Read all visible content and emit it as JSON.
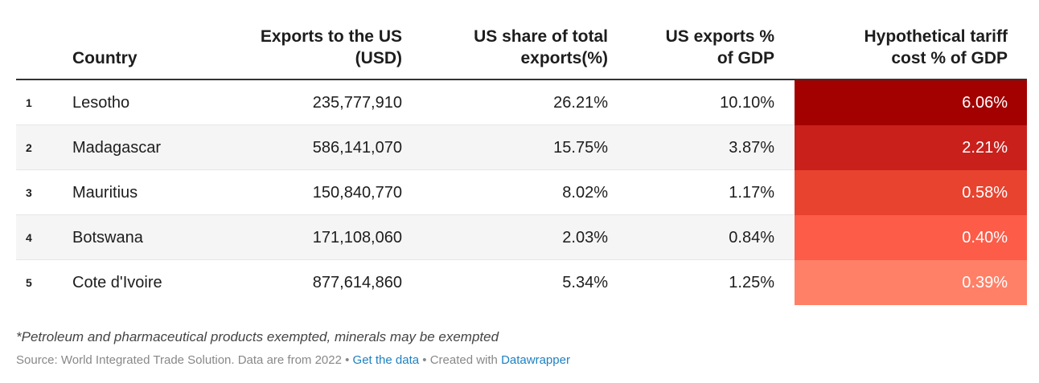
{
  "headers": {
    "country": "Country",
    "exports_l1": "Exports to the US",
    "exports_l2": "(USD)",
    "share_l1": "US share of total",
    "share_l2": "exports(%)",
    "gdp_l1": "US exports %",
    "gdp_l2": "of GDP",
    "tariff_l1": "Hypothetical tariff",
    "tariff_l2": "cost % of GDP"
  },
  "rows": [
    {
      "rank": "1",
      "country": "Lesotho",
      "exports": "235,777,910",
      "share": "26.21%",
      "gdp": "10.10%",
      "tariff": "6.06%",
      "color": "#a30000"
    },
    {
      "rank": "2",
      "country": "Madagascar",
      "exports": "586,141,070",
      "share": "15.75%",
      "gdp": "3.87%",
      "tariff": "2.21%",
      "color": "#c9201c"
    },
    {
      "rank": "3",
      "country": "Mauritius",
      "exports": "150,840,770",
      "share": "8.02%",
      "gdp": "1.17%",
      "tariff": "0.58%",
      "color": "#e8432f"
    },
    {
      "rank": "4",
      "country": "Botswana",
      "exports": "171,108,060",
      "share": "2.03%",
      "gdp": "0.84%",
      "tariff": "0.40%",
      "color": "#fc5c48"
    },
    {
      "rank": "5",
      "country": "Cote d'Ivoire",
      "exports": "877,614,860",
      "share": "5.34%",
      "gdp": "1.25%",
      "tariff": "0.39%",
      "color": "#ff8067"
    }
  ],
  "footnote": "*Petroleum and pharmaceutical products exempted, minerals may be exempted",
  "source": {
    "prefix": "Source: World Integrated Trade Solution. Data are from 2022 • ",
    "get_data": "Get the data",
    "middle": " • Created with ",
    "datawrapper": "Datawrapper"
  },
  "chart_data": {
    "type": "table",
    "columns": [
      "Country",
      "Exports to the US (USD)",
      "US share of total exports(%)",
      "US exports % of GDP",
      "Hypothetical tariff cost % of GDP"
    ],
    "rows": [
      [
        "Lesotho",
        235777910,
        26.21,
        10.1,
        6.06
      ],
      [
        "Madagascar",
        586141070,
        15.75,
        3.87,
        2.21
      ],
      [
        "Mauritius",
        150840770,
        8.02,
        1.17,
        0.58
      ],
      [
        "Botswana",
        171108060,
        2.03,
        0.84,
        0.4
      ],
      [
        "Cote d'Ivoire",
        877614860,
        5.34,
        1.25,
        0.39
      ]
    ]
  }
}
